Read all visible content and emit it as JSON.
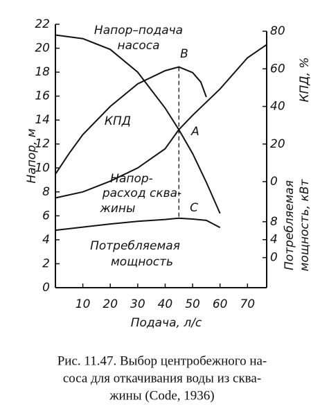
{
  "chart_data": {
    "type": "line",
    "xlabel": "Подача, л/с",
    "ylabel": "Напор, м",
    "y2label": "КПД, %",
    "y3label": [
      "Потребляемая",
      "мощность, кВт"
    ],
    "xlim": [
      0,
      77
    ],
    "xticks": [
      10,
      20,
      30,
      40,
      50,
      60,
      70
    ],
    "ylim": [
      0,
      22
    ],
    "yticks": [
      0,
      2,
      4,
      6,
      8,
      10,
      12,
      14,
      16,
      18,
      20,
      22
    ],
    "y2lim": [
      -56.4,
      83.7
    ],
    "y2ticks": [
      0,
      20,
      40,
      60,
      80
    ],
    "y3lim": [
      -6.7,
      52
    ],
    "y3ticks": [
      0,
      4,
      8
    ],
    "grid": false,
    "color": "#111111",
    "series": [
      {
        "x": [
          0,
          10,
          20,
          30,
          40,
          45,
          50,
          55,
          60
        ],
        "values": [
          21.1,
          20.8,
          19.9,
          18.0,
          15.0,
          13.2,
          11.2,
          8.8,
          6.2
        ],
        "axis": "y"
      },
      {
        "x": [
          0,
          10,
          20,
          30,
          40,
          45,
          50,
          60,
          70,
          77
        ],
        "values": [
          7.5,
          8.0,
          8.9,
          10.0,
          11.6,
          13.2,
          14.4,
          16.6,
          19.2,
          20.3
        ],
        "axis": "y"
      },
      {
        "x": [
          0,
          5,
          10,
          20,
          30,
          40,
          45,
          50,
          53,
          55
        ],
        "values": [
          4,
          15,
          25,
          40,
          52,
          59,
          61,
          58,
          53,
          45
        ],
        "axis": "y2"
      },
      {
        "x": [
          0,
          10,
          20,
          30,
          40,
          45,
          50,
          55,
          60
        ],
        "values": [
          6.1,
          6.8,
          7.5,
          8.1,
          8.5,
          8.8,
          8.6,
          8.3,
          6.7
        ],
        "axis": "y3"
      }
    ],
    "annotations": [
      "Напор–подача",
      "насоса",
      "КПД",
      "Напор-",
      "расход сква-",
      "жины",
      "Потребляемая",
      "мощность",
      "B",
      "A",
      "C"
    ],
    "caption": [
      "Рис. 11.47. Выбор центробежного на-",
      "соса для откачивания воды из сква-",
      "жины (Code, 1936)"
    ]
  }
}
